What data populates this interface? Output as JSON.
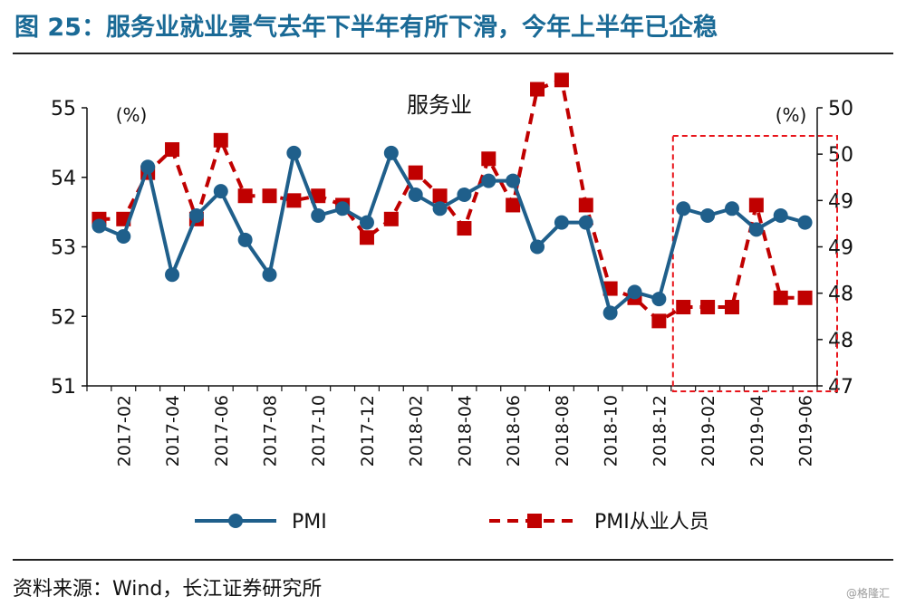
{
  "header": {
    "title": "图 25：服务业就业景气去年下半年有所下滑，今年上半年已企稳"
  },
  "footer": {
    "source": "资料来源：Wind，长江证券研究所",
    "watermark": "@格隆汇"
  },
  "chart_data": {
    "type": "line",
    "title": "服务业",
    "y_unit_left": "(%)",
    "y_unit_right": "(%)",
    "ylim_left": [
      51,
      55
    ],
    "yticks_left": [
      "51",
      "52",
      "53",
      "54",
      "55"
    ],
    "ylim_right": [
      47,
      50
    ],
    "yticks_right": [
      "47",
      "48",
      "48",
      "49",
      "49",
      "50",
      "50"
    ],
    "x": [
      "2017-01",
      "2017-02",
      "2017-03",
      "2017-04",
      "2017-05",
      "2017-06",
      "2017-07",
      "2017-08",
      "2017-09",
      "2017-10",
      "2017-11",
      "2017-12",
      "2018-01",
      "2018-02",
      "2018-03",
      "2018-04",
      "2018-05",
      "2018-06",
      "2018-07",
      "2018-08",
      "2018-09",
      "2018-10",
      "2018-11",
      "2018-12",
      "2019-01",
      "2019-02",
      "2019-03",
      "2019-04",
      "2019-05",
      "2019-06"
    ],
    "xtick_labels": [
      "2017-02",
      "2017-04",
      "2017-06",
      "2017-08",
      "2017-10",
      "2017-12",
      "2018-02",
      "2018-04",
      "2018-06",
      "2018-08",
      "2018-10",
      "2018-12",
      "2019-02",
      "2019-04",
      "2019-06"
    ],
    "series": [
      {
        "name": "PMI",
        "axis": "left",
        "color": "#1f5f8b",
        "marker": "circle",
        "values": [
          53.3,
          53.15,
          54.15,
          52.6,
          53.45,
          53.8,
          53.1,
          52.6,
          54.35,
          53.45,
          53.55,
          53.35,
          54.35,
          53.75,
          53.55,
          53.75,
          53.95,
          53.95,
          53.0,
          53.35,
          53.35,
          52.05,
          52.35,
          52.25,
          53.55,
          53.45,
          53.55,
          53.25,
          53.45,
          53.35
        ]
      },
      {
        "name": "PMI从业人员",
        "axis": "right",
        "color": "#c00000",
        "marker": "square",
        "dashed": true,
        "values": [
          48.8,
          48.8,
          49.3,
          49.55,
          48.8,
          49.65,
          49.05,
          49.05,
          49.0,
          49.05,
          48.95,
          48.6,
          48.8,
          49.3,
          49.05,
          48.7,
          49.45,
          48.95,
          50.2,
          50.3,
          48.95,
          48.05,
          47.95,
          47.7,
          47.85,
          47.85,
          47.85,
          48.95,
          47.95,
          47.95
        ]
      }
    ],
    "highlight_box": {
      "from": "2019-01",
      "to": "2019-06"
    },
    "legend_position": "bottom"
  }
}
